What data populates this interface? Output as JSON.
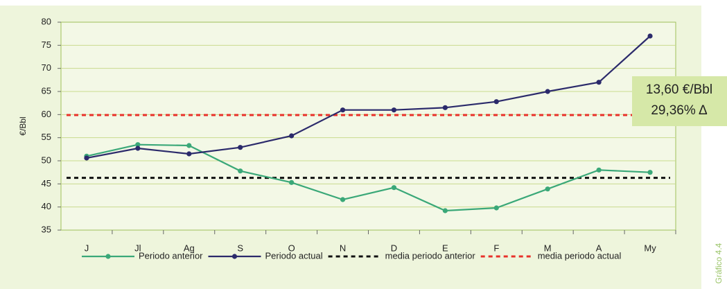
{
  "chart_data": {
    "type": "line",
    "y_label": "€/Bbl",
    "categories": [
      "J",
      "Jl",
      "Ag",
      "S",
      "O",
      "N",
      "D",
      "E",
      "F",
      "M",
      "A",
      "My"
    ],
    "series": [
      {
        "name": "Periodo anterior",
        "color": "#3aa878",
        "values": [
          51,
          53.5,
          53.3,
          47.8,
          45.3,
          41.6,
          44.2,
          39.2,
          39.8,
          43.9,
          48,
          47.5
        ]
      },
      {
        "name": "Periodo actual",
        "color": "#2b2a6b",
        "values": [
          50.6,
          52.7,
          51.5,
          52.9,
          55.4,
          61,
          61,
          61.5,
          62.8,
          65,
          67,
          77
        ]
      }
    ],
    "reference_lines": [
      {
        "name": "media periodo anterior",
        "color": "#111111",
        "value": 46.3
      },
      {
        "name": "media periodo actual",
        "color": "#e8312a",
        "value": 59.9
      }
    ],
    "annotations": [
      "13,60 €/Bbl",
      "29,36% Δ"
    ],
    "figure_label": "Gráfico 4.4",
    "ylim": [
      35,
      80
    ],
    "yticks": [
      35,
      40,
      45,
      50,
      55,
      60,
      65,
      70,
      75,
      80
    ],
    "grid": true
  }
}
